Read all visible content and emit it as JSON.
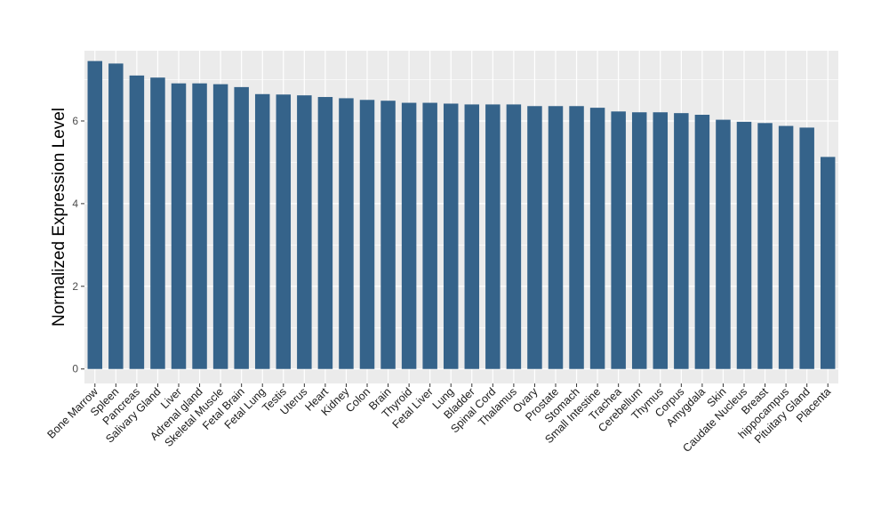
{
  "chart_data": {
    "type": "bar",
    "title": "",
    "xlabel": "",
    "ylabel": "Normalized Expression Level",
    "ylim": [
      -0.35,
      7.7
    ],
    "yticks": [
      0,
      2,
      4,
      6
    ],
    "grid": true,
    "legend": "none",
    "bar_color": "#35638a",
    "panel_color": "#ebebeb",
    "categories": [
      "Bone Marrow",
      "Spleen",
      "Pancreas",
      "Salivary Gland",
      "Liver",
      "Adrenal gland",
      "Skeletal Muscle",
      "Fetal Brain",
      "Fetal Lung",
      "Testis",
      "Uterus",
      "Heart",
      "Kidney",
      "Colon",
      "Brain",
      "Thyroid",
      "Fetal Liver",
      "Lung",
      "Bladder",
      "Spinal Cord",
      "Thalamus",
      "Ovary",
      "Prostate",
      "Stomach",
      "Small Intestine",
      "Trachea",
      "Cerebellum",
      "Thymus",
      "Corpus",
      "Amygdala",
      "Skin",
      "Caudate Nucleus",
      "Breast",
      "hippocampus",
      "Pituitary Gland",
      "Placenta"
    ],
    "values": [
      7.45,
      7.39,
      7.1,
      7.05,
      6.91,
      6.91,
      6.89,
      6.82,
      6.65,
      6.64,
      6.62,
      6.58,
      6.55,
      6.51,
      6.49,
      6.44,
      6.44,
      6.42,
      6.4,
      6.4,
      6.4,
      6.36,
      6.36,
      6.36,
      6.32,
      6.23,
      6.21,
      6.21,
      6.19,
      6.15,
      6.03,
      5.98,
      5.95,
      5.88,
      5.84,
      5.13
    ]
  }
}
